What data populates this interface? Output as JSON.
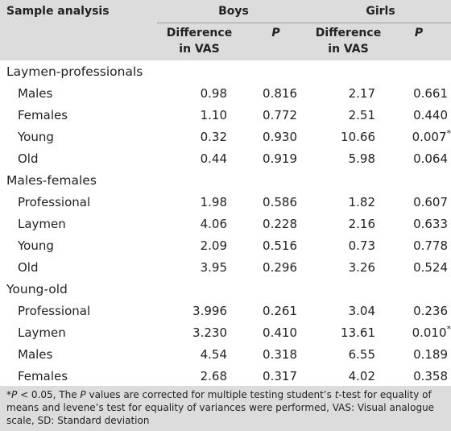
{
  "header": {
    "col_sample": "Sample analysis",
    "group_boys": "Boys",
    "group_girls": "Girls",
    "diff_line1": "Difference",
    "diff_line2": "in VAS",
    "p_label": "P"
  },
  "groups": [
    {
      "label": "Laymen-professionals",
      "rows": [
        {
          "label": "Males",
          "boys_diff": "0.98",
          "boys_p": "0.816",
          "girls_diff": "2.17",
          "girls_p": "0.661",
          "girls_star": ""
        },
        {
          "label": "Females",
          "boys_diff": "1.10",
          "boys_p": "0.772",
          "girls_diff": "2.51",
          "girls_p": "0.440",
          "girls_star": ""
        },
        {
          "label": "Young",
          "boys_diff": "0.32",
          "boys_p": "0.930",
          "girls_diff": "10.66",
          "girls_p": "0.007",
          "girls_star": "*"
        },
        {
          "label": "Old",
          "boys_diff": "0.44",
          "boys_p": "0.919",
          "girls_diff": "5.98",
          "girls_p": "0.064",
          "girls_star": ""
        }
      ]
    },
    {
      "label": "Males-females",
      "rows": [
        {
          "label": "Professional",
          "boys_diff": "1.98",
          "boys_p": "0.586",
          "girls_diff": "1.82",
          "girls_p": "0.607",
          "girls_star": ""
        },
        {
          "label": "Laymen",
          "boys_diff": "4.06",
          "boys_p": "0.228",
          "girls_diff": "2.16",
          "girls_p": "0.633",
          "girls_star": ""
        },
        {
          "label": "Young",
          "boys_diff": "2.09",
          "boys_p": "0.516",
          "girls_diff": "0.73",
          "girls_p": "0.778",
          "girls_star": ""
        },
        {
          "label": "Old",
          "boys_diff": "3.95",
          "boys_p": "0.296",
          "girls_diff": "3.26",
          "girls_p": "0.524",
          "girls_star": ""
        }
      ]
    },
    {
      "label": "Young-old",
      "rows": [
        {
          "label": "Professional",
          "boys_diff": "3.996",
          "boys_p": "0.261",
          "girls_diff": "3.04",
          "girls_p": "0.236",
          "girls_star": ""
        },
        {
          "label": "Laymen",
          "boys_diff": "3.230",
          "boys_p": "0.410",
          "girls_diff": "13.61",
          "girls_p": "0.010",
          "girls_star": "*"
        },
        {
          "label": "Males",
          "boys_diff": "4.54",
          "boys_p": "0.318",
          "girls_diff": "6.55",
          "girls_p": "0.189",
          "girls_star": ""
        },
        {
          "label": "Females",
          "boys_diff": "2.68",
          "boys_p": "0.317",
          "girls_diff": "4.02",
          "girls_p": "0.358",
          "girls_star": ""
        }
      ]
    }
  ],
  "footnote": {
    "star": "*",
    "p_italic": "P",
    "part1": " < 0.05, The ",
    "p_italic2": "P",
    "part2": " values are corrected for multiple testing student’s ",
    "t_italic": "t",
    "part3": "-test for equality of means and levene’s test for equality of variances were performed, VAS: Visual analogue scale, SD: Standard deviation"
  }
}
